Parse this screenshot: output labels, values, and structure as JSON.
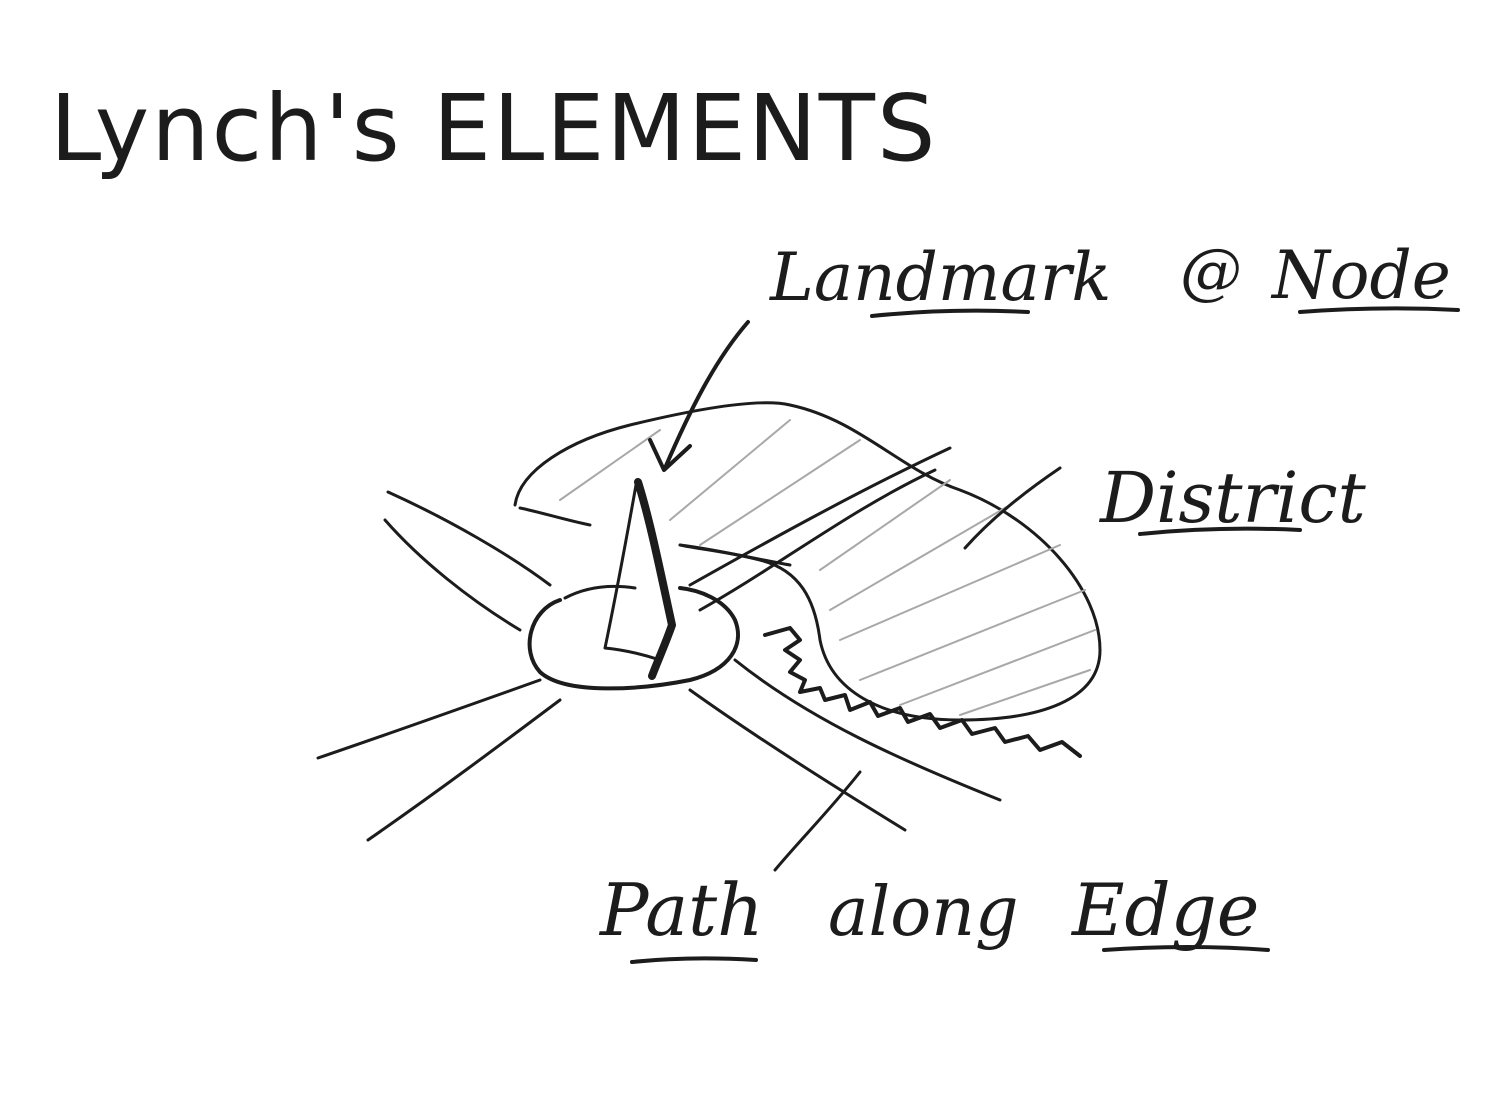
{
  "title": "Lynch's ELEMENTS",
  "labels": {
    "landmark": "Landmark",
    "at": "@",
    "node": "Node",
    "district": "District",
    "path": "Path",
    "along": "along",
    "edge": "Edge"
  },
  "colors": {
    "ink": "#1c1c1c",
    "hatch": "#a8a8a8",
    "paper": "#ffffff"
  }
}
